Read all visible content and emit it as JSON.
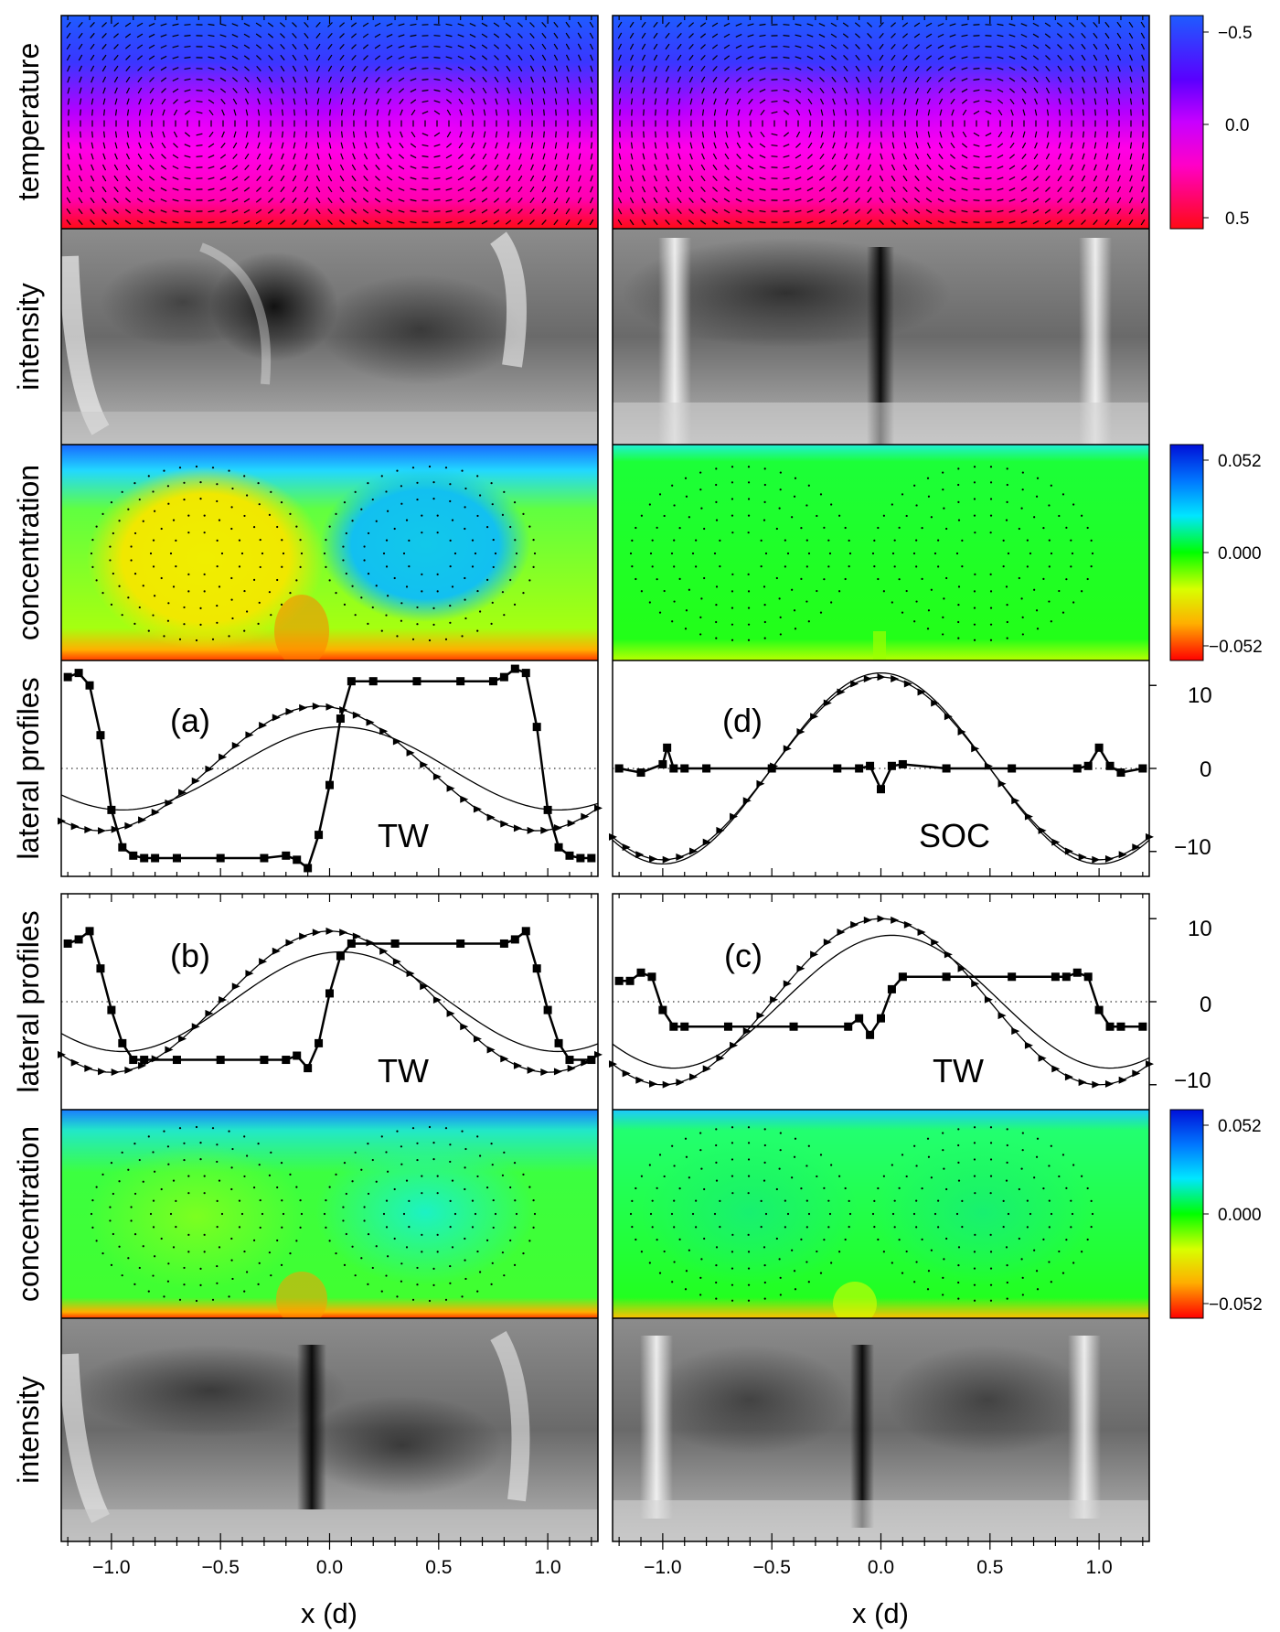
{
  "row_labels": {
    "temperature": "temperature",
    "intensity": "intensity",
    "concentration": "concentration",
    "lateral_profiles": "lateral profiles"
  },
  "xaxis": {
    "label": "x  (d)",
    "ticks": [
      -1.0,
      -0.5,
      0.0,
      0.5,
      1.0
    ],
    "tick_labels": [
      "−1.0",
      "−0.5",
      "0.0",
      "0.5",
      "1.0"
    ],
    "range": [
      -1.23,
      1.23
    ]
  },
  "colorbars": {
    "temperature": {
      "labels": [
        "−0.5",
        "0.0",
        "0.5"
      ],
      "colors": [
        "#1e5cff",
        "#b400ff",
        "#ff00d0",
        "#ff0a14"
      ]
    },
    "concentration": {
      "labels": [
        "0.052",
        "0.000",
        "−0.052"
      ],
      "colors": [
        "#0010d8",
        "#00b4ff",
        "#00ffe6",
        "#00ff00",
        "#d8ff00",
        "#ffae00",
        "#ff0000"
      ]
    }
  },
  "chart_data": [
    {
      "type": "line",
      "panel": "(a)",
      "state": "TW",
      "ylim": [
        -13,
        13
      ],
      "yticks": [
        -10,
        0,
        10
      ],
      "ytick_labels": [
        "−10",
        "0",
        "10"
      ],
      "series": [
        {
          "marker": "square",
          "x": [
            -1.2,
            -1.15,
            -1.1,
            -1.05,
            -1.0,
            -0.95,
            -0.9,
            -0.85,
            -0.8,
            -0.7,
            -0.5,
            -0.3,
            -0.2,
            -0.15,
            -0.1,
            -0.05,
            0.0,
            0.05,
            0.1,
            0.2,
            0.4,
            0.6,
            0.75,
            0.8,
            0.85,
            0.9,
            0.95,
            1.0,
            1.05,
            1.1,
            1.15,
            1.2
          ],
          "y": [
            11,
            11.5,
            10,
            4,
            -5,
            -9.5,
            -10.5,
            -10.8,
            -10.8,
            -10.8,
            -10.8,
            -10.8,
            -10.5,
            -11,
            -12,
            -8,
            -2,
            6,
            10.5,
            10.5,
            10.5,
            10.5,
            10.5,
            11,
            12,
            11.5,
            5,
            -5,
            -9.5,
            -10.5,
            -10.8,
            -10.8
          ]
        },
        {
          "marker": "triangle",
          "amplitude": 7.5,
          "peak_x": -0.05
        },
        {
          "marker": "none",
          "amplitude": 5,
          "peak_x": 0.05
        }
      ]
    },
    {
      "type": "line",
      "panel": "(d)",
      "state": "SOC",
      "ylim": [
        -13,
        13
      ],
      "yticks": [
        -10,
        0,
        10
      ],
      "ytick_labels": [
        "−10",
        "0",
        "10"
      ],
      "series": [
        {
          "marker": "square",
          "x": [
            -1.2,
            -1.1,
            -1.0,
            -0.98,
            -0.95,
            -0.9,
            -0.8,
            -0.5,
            -0.2,
            -0.1,
            -0.05,
            0.0,
            0.05,
            0.1,
            0.3,
            0.6,
            0.9,
            0.95,
            1.0,
            1.05,
            1.1,
            1.2
          ],
          "y": [
            0,
            -0.5,
            0.5,
            2.5,
            0,
            0,
            0,
            0,
            0,
            0,
            0.3,
            -2.5,
            0.3,
            0.5,
            0,
            0,
            0,
            0.3,
            2.5,
            0.3,
            -0.5,
            0
          ]
        },
        {
          "marker": "triangle",
          "amplitude": 11,
          "peak_x": 0.0
        },
        {
          "marker": "none",
          "amplitude": 11.5,
          "peak_x": 0.0
        }
      ]
    },
    {
      "type": "line",
      "panel": "(b)",
      "state": "TW",
      "ylim": [
        -13,
        13
      ],
      "yticks": [
        -10,
        0,
        10
      ],
      "ytick_labels": [
        "−10",
        "0",
        "10"
      ],
      "series": [
        {
          "marker": "square",
          "x": [
            -1.2,
            -1.15,
            -1.1,
            -1.05,
            -1.0,
            -0.95,
            -0.9,
            -0.85,
            -0.7,
            -0.5,
            -0.3,
            -0.2,
            -0.15,
            -0.1,
            -0.05,
            0.0,
            0.05,
            0.1,
            0.3,
            0.6,
            0.8,
            0.85,
            0.9,
            0.95,
            1.0,
            1.05,
            1.1,
            1.2
          ],
          "y": [
            7,
            7.5,
            8.5,
            4,
            -1,
            -5,
            -7,
            -7,
            -7,
            -7,
            -7,
            -7,
            -6.5,
            -8,
            -5,
            1,
            5.5,
            7,
            7,
            7,
            7,
            7.5,
            8.5,
            4,
            -1,
            -5,
            -7,
            -7
          ]
        },
        {
          "marker": "triangle",
          "amplitude": 8.5,
          "peak_x": 0.0
        },
        {
          "marker": "none",
          "amplitude": 6,
          "peak_x": 0.05
        }
      ]
    },
    {
      "type": "line",
      "panel": "(c)",
      "state": "TW",
      "ylim": [
        -13,
        13
      ],
      "yticks": [
        -10,
        0,
        10
      ],
      "ytick_labels": [
        "−10",
        "0",
        "10"
      ],
      "series": [
        {
          "marker": "square",
          "x": [
            -1.2,
            -1.15,
            -1.1,
            -1.05,
            -1.0,
            -0.95,
            -0.9,
            -0.7,
            -0.4,
            -0.15,
            -0.1,
            -0.05,
            0.0,
            0.05,
            0.1,
            0.3,
            0.6,
            0.8,
            0.85,
            0.9,
            0.95,
            1.0,
            1.05,
            1.1,
            1.2
          ],
          "y": [
            2.5,
            2.5,
            3.5,
            3,
            -1,
            -3,
            -3,
            -3,
            -3,
            -3,
            -2,
            -4,
            -2,
            1.5,
            3,
            3,
            3,
            3,
            3,
            3.5,
            3,
            -1,
            -3,
            -3,
            -3
          ]
        },
        {
          "marker": "triangle",
          "amplitude": 10,
          "peak_x": 0.0
        },
        {
          "marker": "none",
          "amplitude": 8,
          "peak_x": 0.05
        }
      ]
    }
  ]
}
